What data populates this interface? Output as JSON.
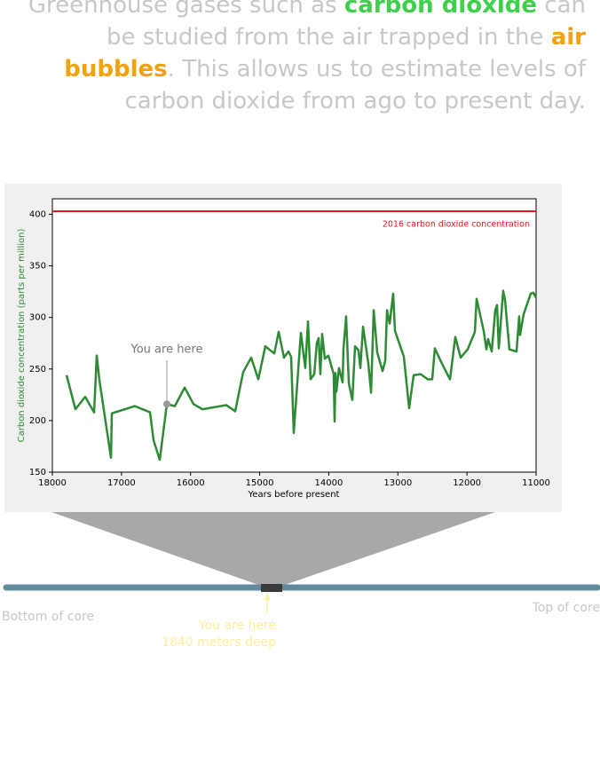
{
  "intro": {
    "parts": [
      "Greenhouse gases such as ",
      "carbon dioxide",
      " can be studied from the air trapped in the ",
      "air bubbles",
      ". This allows us to estimate levels of carbon dioxide from ago to present day."
    ]
  },
  "chart_data": {
    "type": "line",
    "x_label": "Years before present",
    "y_label": "Carbon dioxide concentration (parts per million)",
    "color": "#2e8b35",
    "x": [
      17795,
      17666,
      17525,
      17396,
      17358,
      17319,
      17152,
      17139,
      16806,
      16587,
      16536,
      16446,
      16343,
      16228,
      16086,
      15958,
      15829,
      15483,
      15354,
      15239,
      15123,
      15020,
      14918,
      14789,
      14725,
      14648,
      14584,
      14545,
      14507,
      14404,
      14340,
      14301,
      14263,
      14211,
      14173,
      14147,
      14122,
      14096,
      14057,
      14006,
      13929,
      13916,
      13903,
      13890,
      13852,
      13800,
      13788,
      13749,
      13710,
      13659,
      13620,
      13569,
      13543,
      13504,
      13427,
      13388,
      13350,
      13299,
      13222,
      13183,
      13157,
      13119,
      13068,
      13042,
      12914,
      12837,
      12772,
      12670,
      12567,
      12503,
      12465,
      12375,
      12246,
      12169,
      12092,
      11990,
      11886,
      11861,
      11758,
      11719,
      11694,
      11642,
      11591,
      11565,
      11540,
      11476,
      11450,
      11386,
      11283,
      11245,
      11232,
      11181,
      11078,
      11040,
      11000
    ],
    "values": [
      244,
      211,
      223,
      208,
      263,
      239,
      164,
      207,
      214,
      208,
      181,
      162,
      216,
      214,
      232,
      216,
      211,
      215,
      209,
      247,
      261,
      240,
      272,
      265,
      286,
      261,
      267,
      262,
      188,
      285,
      251,
      296,
      240,
      245,
      275,
      280,
      245,
      284,
      260,
      263,
      245,
      199,
      246,
      228,
      251,
      237,
      269,
      301,
      236,
      220,
      272,
      268,
      251,
      291,
      255,
      227,
      307,
      266,
      248,
      258,
      307,
      294,
      323,
      287,
      262,
      212,
      244,
      245,
      240,
      240,
      270,
      257,
      240,
      281,
      261,
      269,
      286,
      318,
      287,
      269,
      279,
      267,
      307,
      312,
      270,
      326,
      317,
      269,
      267,
      301,
      283,
      303,
      323,
      324,
      319
    ],
    "xlim": [
      18000,
      11000
    ],
    "xticks": [
      18000,
      17000,
      16000,
      15000,
      14000,
      13000,
      12000,
      11000
    ],
    "ylim": [
      150,
      415
    ],
    "yticks": [
      150,
      200,
      250,
      300,
      350,
      400
    ],
    "reference": {
      "value": 403,
      "label": "2016 carbon dioxide concentration",
      "color": "#e31a1c"
    },
    "annotation": {
      "text": "You are here",
      "x": 16343,
      "y": 216
    }
  },
  "core": {
    "bottom": "Bottom of core",
    "top": "Top of core",
    "here": "You are here",
    "depth": "1840 meters deep"
  }
}
